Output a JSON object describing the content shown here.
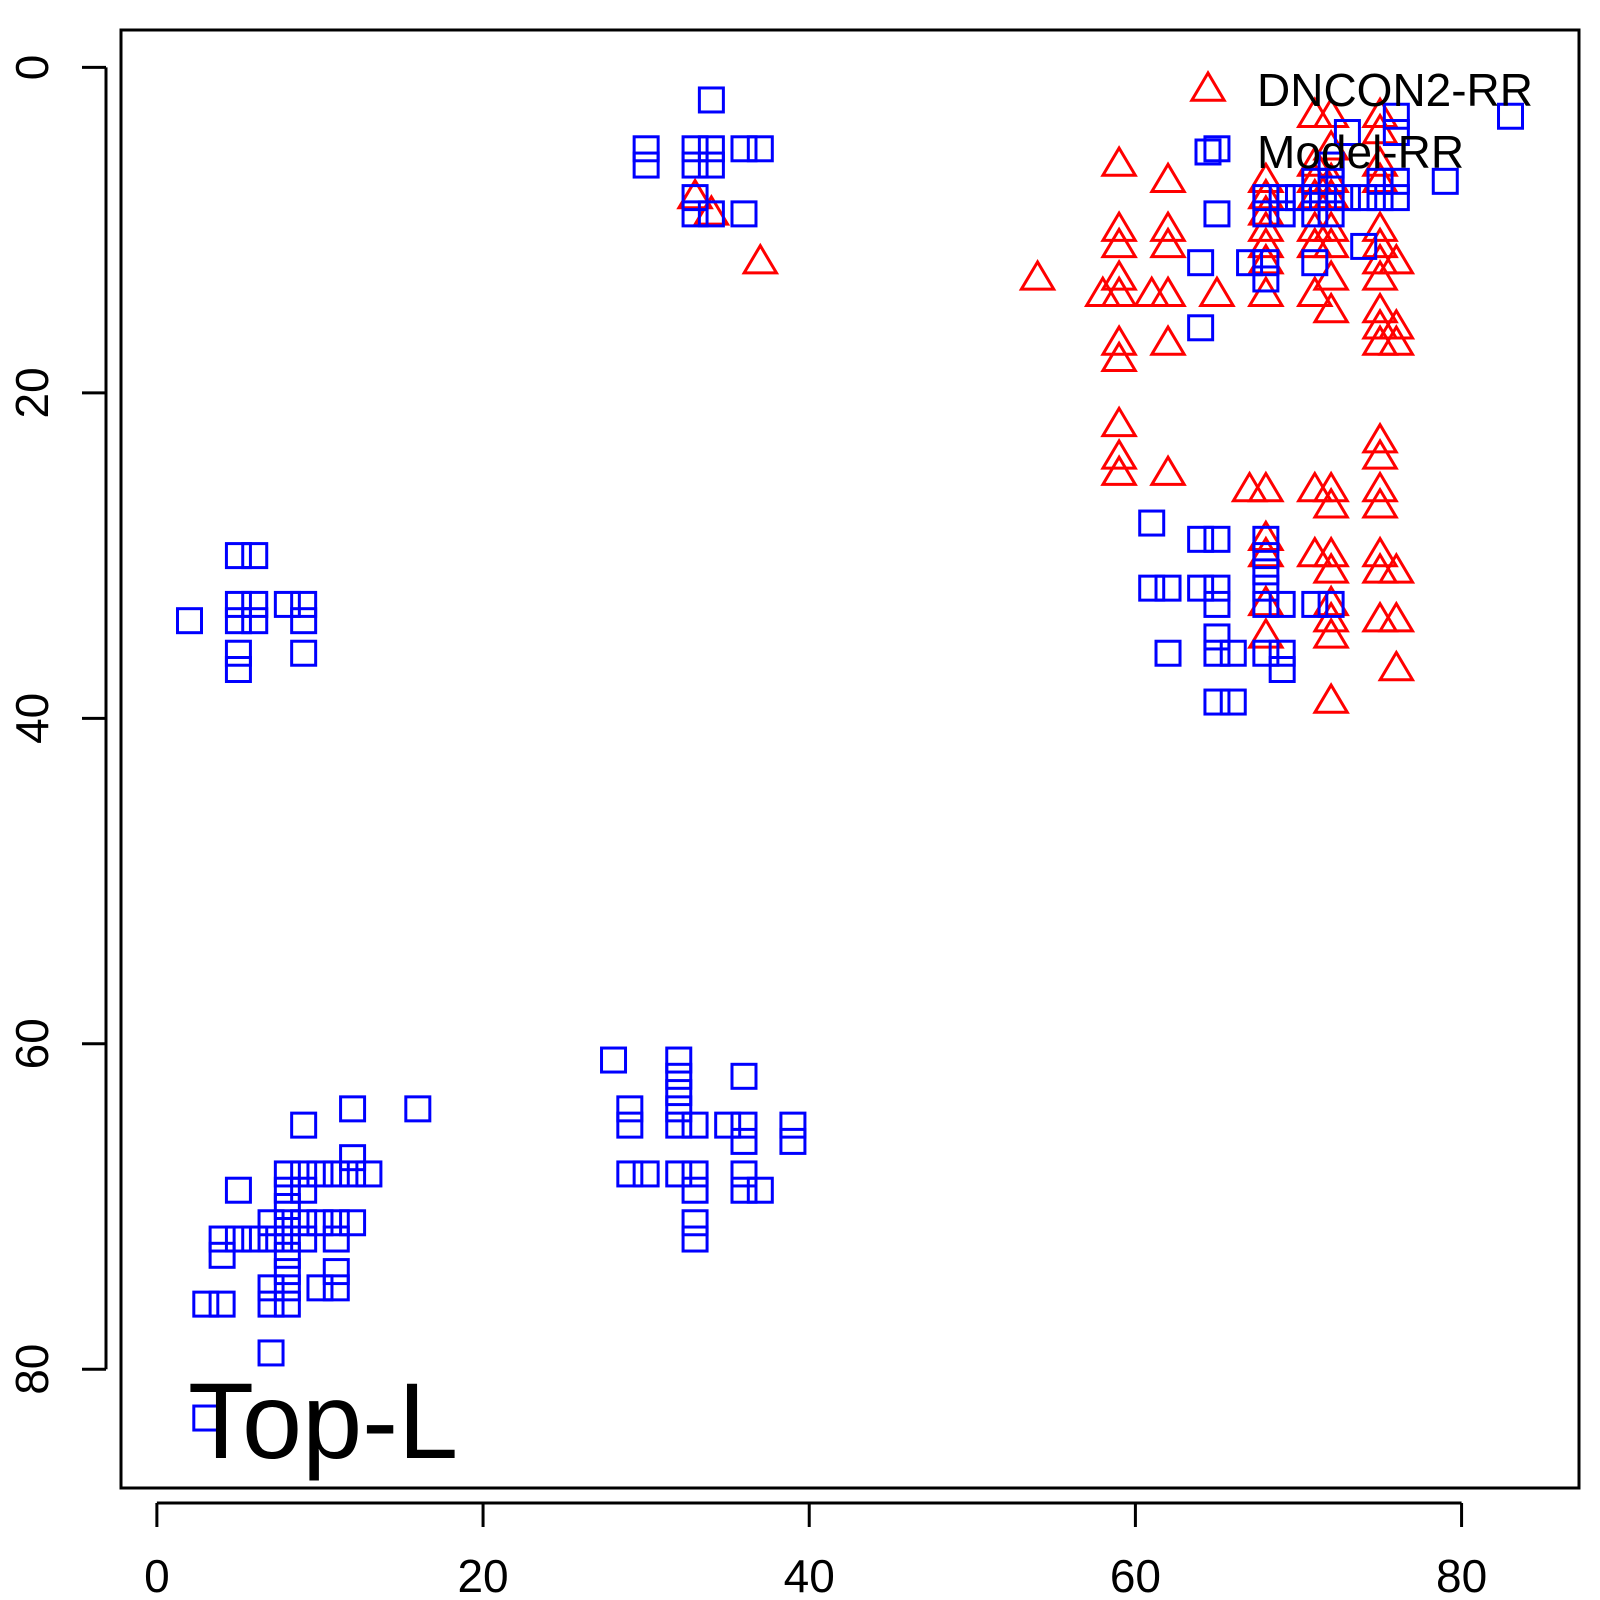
{
  "chart_data": {
    "type": "scatter",
    "panel_label": "Top-L",
    "title": "",
    "xlabel": "",
    "ylabel": "",
    "xlim": [
      -2.2,
      87.2
    ],
    "ylim": [
      -2.3,
      87.3
    ],
    "y_inverted": true,
    "x_ticks": [
      0,
      20,
      40,
      60,
      80
    ],
    "y_ticks": [
      0,
      20,
      40,
      60,
      80
    ],
    "grid": false,
    "legend_position": "top-right",
    "series": [
      {
        "name": "DNCON2-RR",
        "marker": "triangle-open",
        "color": "#ff0000",
        "points": [
          [
            33,
            8
          ],
          [
            34,
            9
          ],
          [
            37,
            12
          ],
          [
            54,
            13
          ],
          [
            58,
            14
          ],
          [
            59,
            6
          ],
          [
            59,
            10
          ],
          [
            59,
            11
          ],
          [
            59,
            13
          ],
          [
            59,
            14
          ],
          [
            59,
            17
          ],
          [
            59,
            18
          ],
          [
            59,
            22
          ],
          [
            59,
            24
          ],
          [
            59,
            25
          ],
          [
            61,
            14
          ],
          [
            62,
            7
          ],
          [
            62,
            10
          ],
          [
            62,
            11
          ],
          [
            62,
            14
          ],
          [
            62,
            17
          ],
          [
            62,
            25
          ],
          [
            65,
            14
          ],
          [
            67,
            26
          ],
          [
            68,
            7
          ],
          [
            68,
            8
          ],
          [
            68,
            9
          ],
          [
            68,
            10
          ],
          [
            68,
            11
          ],
          [
            68,
            12
          ],
          [
            68,
            14
          ],
          [
            68,
            26
          ],
          [
            68,
            29
          ],
          [
            68,
            30
          ],
          [
            68,
            33
          ],
          [
            68,
            35
          ],
          [
            71,
            3
          ],
          [
            71,
            6
          ],
          [
            71,
            7
          ],
          [
            71,
            8
          ],
          [
            71,
            10
          ],
          [
            71,
            11
          ],
          [
            71,
            14
          ],
          [
            71,
            26
          ],
          [
            71,
            30
          ],
          [
            72,
            3
          ],
          [
            72,
            5
          ],
          [
            72,
            7
          ],
          [
            72,
            8
          ],
          [
            72,
            10
          ],
          [
            72,
            11
          ],
          [
            72,
            13
          ],
          [
            72,
            15
          ],
          [
            72,
            26
          ],
          [
            72,
            27
          ],
          [
            72,
            30
          ],
          [
            72,
            31
          ],
          [
            72,
            33
          ],
          [
            72,
            34
          ],
          [
            72,
            35
          ],
          [
            72,
            39
          ],
          [
            75,
            3
          ],
          [
            75,
            4
          ],
          [
            75,
            6
          ],
          [
            75,
            7
          ],
          [
            75,
            10
          ],
          [
            75,
            11
          ],
          [
            75,
            12
          ],
          [
            75,
            13
          ],
          [
            75,
            15
          ],
          [
            75,
            16
          ],
          [
            75,
            17
          ],
          [
            75,
            23
          ],
          [
            75,
            24
          ],
          [
            75,
            26
          ],
          [
            75,
            27
          ],
          [
            75,
            30
          ],
          [
            75,
            31
          ],
          [
            75,
            34
          ],
          [
            76,
            12
          ],
          [
            76,
            16
          ],
          [
            76,
            17
          ],
          [
            76,
            31
          ],
          [
            76,
            34
          ],
          [
            76,
            37
          ]
        ]
      },
      {
        "name": "Model-RR",
        "marker": "square-open",
        "color": "#0000ff",
        "points": [
          [
            34,
            2
          ],
          [
            30,
            5
          ],
          [
            30,
            6
          ],
          [
            33,
            5
          ],
          [
            33,
            6
          ],
          [
            34,
            5
          ],
          [
            34,
            6
          ],
          [
            36,
            5
          ],
          [
            37,
            5
          ],
          [
            33,
            8
          ],
          [
            33,
            9
          ],
          [
            34,
            9
          ],
          [
            36,
            9
          ],
          [
            2,
            34
          ],
          [
            5,
            30
          ],
          [
            6,
            30
          ],
          [
            5,
            33
          ],
          [
            5,
            34
          ],
          [
            6,
            33
          ],
          [
            6,
            34
          ],
          [
            8,
            33
          ],
          [
            9,
            33
          ],
          [
            9,
            34
          ],
          [
            5,
            36
          ],
          [
            5,
            37
          ],
          [
            9,
            36
          ],
          [
            65,
            5
          ],
          [
            65,
            9
          ],
          [
            64,
            12
          ],
          [
            64,
            16
          ],
          [
            67,
            12
          ],
          [
            68,
            8
          ],
          [
            68,
            9
          ],
          [
            68,
            12
          ],
          [
            68,
            13
          ],
          [
            69,
            8
          ],
          [
            69,
            9
          ],
          [
            70,
            8
          ],
          [
            71,
            7
          ],
          [
            71,
            8
          ],
          [
            71,
            9
          ],
          [
            71,
            12
          ],
          [
            72,
            6
          ],
          [
            72,
            7
          ],
          [
            72,
            8
          ],
          [
            72,
            9
          ],
          [
            73,
            4
          ],
          [
            73,
            8
          ],
          [
            74,
            8
          ],
          [
            74,
            11
          ],
          [
            75,
            7
          ],
          [
            75,
            8
          ],
          [
            76,
            3
          ],
          [
            76,
            4
          ],
          [
            76,
            7
          ],
          [
            76,
            8
          ],
          [
            79,
            7
          ],
          [
            83,
            3
          ],
          [
            61,
            28
          ],
          [
            61,
            32
          ],
          [
            62,
            32
          ],
          [
            62,
            36
          ],
          [
            64,
            29
          ],
          [
            64,
            32
          ],
          [
            65,
            29
          ],
          [
            65,
            32
          ],
          [
            65,
            33
          ],
          [
            65,
            35
          ],
          [
            65,
            36
          ],
          [
            65,
            39
          ],
          [
            66,
            36
          ],
          [
            66,
            39
          ],
          [
            68,
            29
          ],
          [
            68,
            30
          ],
          [
            68,
            31
          ],
          [
            68,
            32
          ],
          [
            68,
            33
          ],
          [
            68,
            36
          ],
          [
            69,
            33
          ],
          [
            69,
            36
          ],
          [
            69,
            37
          ],
          [
            71,
            33
          ],
          [
            72,
            33
          ],
          [
            28,
            61
          ],
          [
            32,
            61
          ],
          [
            32,
            62
          ],
          [
            32,
            63
          ],
          [
            29,
            64
          ],
          [
            29,
            65
          ],
          [
            32,
            64
          ],
          [
            32,
            65
          ],
          [
            33,
            65
          ],
          [
            36,
            62
          ],
          [
            35,
            65
          ],
          [
            36,
            65
          ],
          [
            36,
            66
          ],
          [
            39,
            65
          ],
          [
            39,
            66
          ],
          [
            29,
            68
          ],
          [
            30,
            68
          ],
          [
            32,
            68
          ],
          [
            33,
            68
          ],
          [
            33,
            69
          ],
          [
            36,
            68
          ],
          [
            36,
            69
          ],
          [
            37,
            69
          ],
          [
            33,
            71
          ],
          [
            33,
            72
          ],
          [
            3,
            76
          ],
          [
            4,
            76
          ],
          [
            3,
            83
          ],
          [
            4,
            72
          ],
          [
            4,
            73
          ],
          [
            5,
            69
          ],
          [
            5,
            72
          ],
          [
            6,
            72
          ],
          [
            7,
            71
          ],
          [
            7,
            72
          ],
          [
            7,
            75
          ],
          [
            7,
            76
          ],
          [
            7,
            79
          ],
          [
            8,
            68
          ],
          [
            8,
            69
          ],
          [
            8,
            70
          ],
          [
            8,
            71
          ],
          [
            8,
            72
          ],
          [
            8,
            73
          ],
          [
            8,
            74
          ],
          [
            8,
            75
          ],
          [
            8,
            76
          ],
          [
            9,
            65
          ],
          [
            9,
            68
          ],
          [
            9,
            69
          ],
          [
            9,
            71
          ],
          [
            9,
            72
          ],
          [
            10,
            68
          ],
          [
            10,
            71
          ],
          [
            10,
            75
          ],
          [
            11,
            68
          ],
          [
            11,
            71
          ],
          [
            11,
            72
          ],
          [
            11,
            74
          ],
          [
            11,
            75
          ],
          [
            12,
            64
          ],
          [
            12,
            67
          ],
          [
            12,
            68
          ],
          [
            12,
            71
          ],
          [
            13,
            68
          ],
          [
            16,
            64
          ]
        ]
      }
    ]
  }
}
